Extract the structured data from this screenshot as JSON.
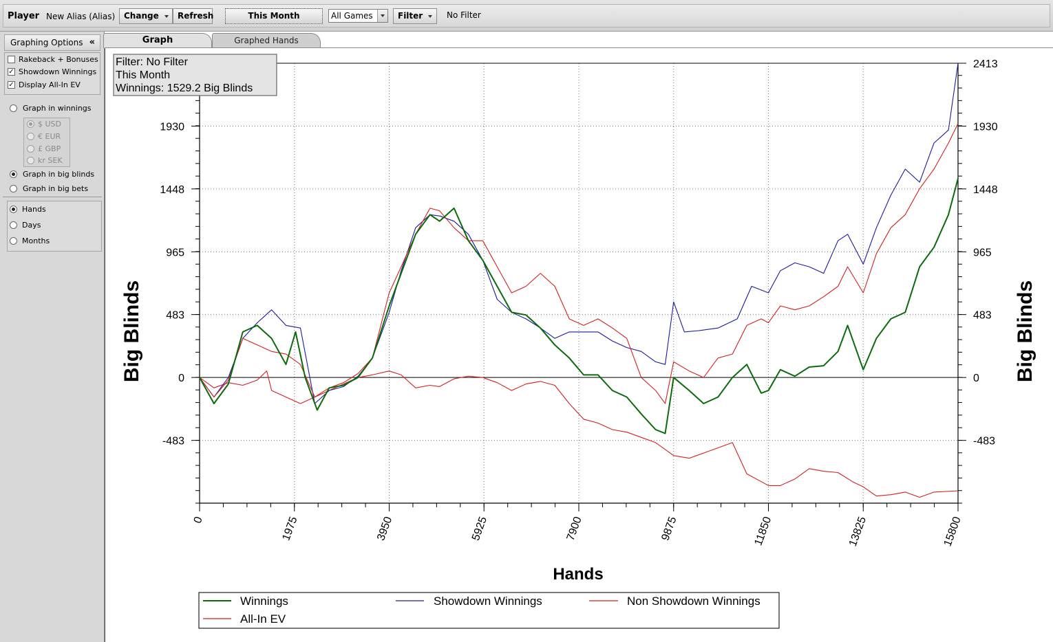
{
  "toolbar": {
    "player_label": "Player",
    "player_value": "New Alias (Alias)",
    "change_label": "Change",
    "refresh_label": "Refresh",
    "period_label": "This Month",
    "games_value": "All Games",
    "filter_label": "Filter",
    "filter_status": "No Filter"
  },
  "sidebar": {
    "title": "Graphing Options",
    "collapse_glyph": "«",
    "checkboxes": [
      {
        "label": "Rakeback + Bonuses",
        "checked": false
      },
      {
        "label": "Showdown Winnings",
        "checked": true
      },
      {
        "label": "Display All-In EV",
        "checked": true
      }
    ],
    "units": [
      {
        "label": "Graph in winnings",
        "selected": false
      },
      {
        "label": "Graph in big blinds",
        "selected": true
      },
      {
        "label": "Graph in big bets",
        "selected": false
      }
    ],
    "currencies": [
      {
        "label": "$ USD",
        "selected": true
      },
      {
        "label": "€ EUR",
        "selected": false
      },
      {
        "label": "£ GBP",
        "selected": false
      },
      {
        "label": "kr SEK",
        "selected": false
      }
    ],
    "xaxis_modes": [
      {
        "label": "Hands",
        "selected": true
      },
      {
        "label": "Days",
        "selected": false
      },
      {
        "label": "Months",
        "selected": false
      }
    ]
  },
  "tabs": [
    {
      "label": "Graph",
      "active": true
    },
    {
      "label": "Graphed Hands",
      "active": false
    }
  ],
  "chart_data": {
    "type": "line",
    "info_box": [
      "Filter: No Filter",
      "This Month",
      "Winnings: 1529.2 Big Blinds"
    ],
    "xlabel": "Hands",
    "ylabel": "Big Blinds",
    "xlim": [
      0,
      15800
    ],
    "ylim": [
      -965,
      2413
    ],
    "x_ticks": [
      "0",
      "1975",
      "3950",
      "5925",
      "7900",
      "9875",
      "11850",
      "13825",
      "15800"
    ],
    "y_ticks": [
      "2413",
      "1930",
      "1448",
      "965",
      "483",
      "0",
      "-483"
    ],
    "grid": true,
    "legend_placement": "bottom",
    "series": [
      {
        "name": "Winnings",
        "color": "#0a6b0a",
        "points": [
          [
            0,
            0
          ],
          [
            300,
            -200
          ],
          [
            600,
            -50
          ],
          [
            900,
            350
          ],
          [
            1200,
            400
          ],
          [
            1500,
            300
          ],
          [
            1800,
            100
          ],
          [
            2000,
            350
          ],
          [
            2200,
            0
          ],
          [
            2450,
            -250
          ],
          [
            2700,
            -80
          ],
          [
            3000,
            -60
          ],
          [
            3300,
            0
          ],
          [
            3600,
            150
          ],
          [
            3950,
            550
          ],
          [
            4200,
            800
          ],
          [
            4500,
            1100
          ],
          [
            4800,
            1250
          ],
          [
            5000,
            1200
          ],
          [
            5300,
            1300
          ],
          [
            5600,
            1050
          ],
          [
            5900,
            900
          ],
          [
            6200,
            700
          ],
          [
            6500,
            500
          ],
          [
            6800,
            480
          ],
          [
            7100,
            380
          ],
          [
            7400,
            250
          ],
          [
            7700,
            150
          ],
          [
            8000,
            20
          ],
          [
            8300,
            20
          ],
          [
            8600,
            -100
          ],
          [
            8900,
            -150
          ],
          [
            9200,
            -280
          ],
          [
            9500,
            -400
          ],
          [
            9700,
            -430
          ],
          [
            9875,
            0
          ],
          [
            10200,
            -100
          ],
          [
            10500,
            -200
          ],
          [
            10800,
            -150
          ],
          [
            11100,
            0
          ],
          [
            11400,
            100
          ],
          [
            11700,
            -120
          ],
          [
            11850,
            -100
          ],
          [
            12100,
            60
          ],
          [
            12400,
            10
          ],
          [
            12700,
            80
          ],
          [
            13000,
            90
          ],
          [
            13300,
            200
          ],
          [
            13500,
            400
          ],
          [
            13825,
            60
          ],
          [
            14100,
            300
          ],
          [
            14400,
            450
          ],
          [
            14700,
            500
          ],
          [
            15000,
            850
          ],
          [
            15300,
            1000
          ],
          [
            15600,
            1250
          ],
          [
            15800,
            1529
          ]
        ]
      },
      {
        "name": "Showdown Winnings",
        "color": "#1a1aa0",
        "points": [
          [
            0,
            0
          ],
          [
            300,
            -150
          ],
          [
            600,
            0
          ],
          [
            900,
            300
          ],
          [
            1200,
            420
          ],
          [
            1500,
            520
          ],
          [
            1800,
            400
          ],
          [
            2100,
            380
          ],
          [
            2400,
            -200
          ],
          [
            2700,
            -100
          ],
          [
            3000,
            -70
          ],
          [
            3300,
            10
          ],
          [
            3600,
            150
          ],
          [
            3950,
            500
          ],
          [
            4200,
            820
          ],
          [
            4500,
            1150
          ],
          [
            4800,
            1250
          ],
          [
            5000,
            1240
          ],
          [
            5300,
            1200
          ],
          [
            5600,
            1100
          ],
          [
            5900,
            900
          ],
          [
            6200,
            600
          ],
          [
            6500,
            500
          ],
          [
            6800,
            450
          ],
          [
            7100,
            380
          ],
          [
            7400,
            300
          ],
          [
            7700,
            350
          ],
          [
            8000,
            350
          ],
          [
            8300,
            350
          ],
          [
            8600,
            280
          ],
          [
            8900,
            230
          ],
          [
            9200,
            200
          ],
          [
            9500,
            120
          ],
          [
            9700,
            100
          ],
          [
            9875,
            580
          ],
          [
            10100,
            350
          ],
          [
            10400,
            360
          ],
          [
            10800,
            380
          ],
          [
            11200,
            450
          ],
          [
            11500,
            700
          ],
          [
            11850,
            650
          ],
          [
            12100,
            820
          ],
          [
            12400,
            880
          ],
          [
            12700,
            850
          ],
          [
            13000,
            800
          ],
          [
            13300,
            1050
          ],
          [
            13500,
            1100
          ],
          [
            13825,
            870
          ],
          [
            14100,
            1150
          ],
          [
            14400,
            1400
          ],
          [
            14700,
            1600
          ],
          [
            15000,
            1500
          ],
          [
            15300,
            1800
          ],
          [
            15600,
            1900
          ],
          [
            15800,
            2413
          ]
        ]
      },
      {
        "name": "Non Showdown Winnings",
        "color": "#d42020",
        "points": [
          [
            0,
            0
          ],
          [
            300,
            -80
          ],
          [
            600,
            -40
          ],
          [
            900,
            -60
          ],
          [
            1200,
            -20
          ],
          [
            1400,
            50
          ],
          [
            1500,
            -100
          ],
          [
            1800,
            -150
          ],
          [
            2100,
            -200
          ],
          [
            2400,
            -150
          ],
          [
            2700,
            -100
          ],
          [
            3000,
            -50
          ],
          [
            3300,
            0
          ],
          [
            3600,
            20
          ],
          [
            3950,
            50
          ],
          [
            4200,
            20
          ],
          [
            4500,
            -80
          ],
          [
            4800,
            -60
          ],
          [
            5000,
            -70
          ],
          [
            5300,
            -10
          ],
          [
            5600,
            10
          ],
          [
            5900,
            0
          ],
          [
            6200,
            -40
          ],
          [
            6500,
            -100
          ],
          [
            6800,
            -50
          ],
          [
            7100,
            -30
          ],
          [
            7400,
            -60
          ],
          [
            7700,
            -200
          ],
          [
            8000,
            -320
          ],
          [
            8300,
            -350
          ],
          [
            8600,
            -400
          ],
          [
            8900,
            -420
          ],
          [
            9200,
            -460
          ],
          [
            9500,
            -500
          ],
          [
            9875,
            -600
          ],
          [
            10200,
            -620
          ],
          [
            10500,
            -580
          ],
          [
            10800,
            -540
          ],
          [
            11100,
            -500
          ],
          [
            11400,
            -740
          ],
          [
            11700,
            -800
          ],
          [
            11850,
            -830
          ],
          [
            12100,
            -830
          ],
          [
            12400,
            -780
          ],
          [
            12700,
            -700
          ],
          [
            13000,
            -720
          ],
          [
            13300,
            -730
          ],
          [
            13600,
            -800
          ],
          [
            13825,
            -840
          ],
          [
            14100,
            -910
          ],
          [
            14400,
            -900
          ],
          [
            14700,
            -880
          ],
          [
            15000,
            -920
          ],
          [
            15300,
            -880
          ],
          [
            15800,
            -870
          ]
        ]
      },
      {
        "name": "All-In EV",
        "color": "#d42020",
        "points": [
          [
            0,
            0
          ],
          [
            300,
            -150
          ],
          [
            600,
            -20
          ],
          [
            900,
            300
          ],
          [
            1200,
            250
          ],
          [
            1500,
            200
          ],
          [
            1800,
            180
          ],
          [
            2100,
            100
          ],
          [
            2400,
            -150
          ],
          [
            2700,
            -80
          ],
          [
            3000,
            -40
          ],
          [
            3300,
            30
          ],
          [
            3600,
            150
          ],
          [
            3950,
            650
          ],
          [
            4200,
            850
          ],
          [
            4500,
            1100
          ],
          [
            4800,
            1300
          ],
          [
            5000,
            1280
          ],
          [
            5300,
            1150
          ],
          [
            5600,
            1050
          ],
          [
            5900,
            1050
          ],
          [
            6200,
            850
          ],
          [
            6500,
            650
          ],
          [
            6800,
            700
          ],
          [
            7100,
            800
          ],
          [
            7400,
            700
          ],
          [
            7700,
            450
          ],
          [
            8000,
            400
          ],
          [
            8300,
            450
          ],
          [
            8600,
            380
          ],
          [
            8900,
            300
          ],
          [
            9200,
            0
          ],
          [
            9500,
            -100
          ],
          [
            9700,
            -200
          ],
          [
            9875,
            120
          ],
          [
            10200,
            50
          ],
          [
            10500,
            0
          ],
          [
            10800,
            150
          ],
          [
            11100,
            180
          ],
          [
            11400,
            400
          ],
          [
            11700,
            450
          ],
          [
            11850,
            420
          ],
          [
            12100,
            550
          ],
          [
            12400,
            520
          ],
          [
            12700,
            550
          ],
          [
            13000,
            620
          ],
          [
            13300,
            700
          ],
          [
            13500,
            850
          ],
          [
            13825,
            650
          ],
          [
            14100,
            950
          ],
          [
            14400,
            1150
          ],
          [
            14700,
            1250
          ],
          [
            15000,
            1450
          ],
          [
            15300,
            1600
          ],
          [
            15600,
            1800
          ],
          [
            15800,
            1950
          ]
        ]
      }
    ]
  }
}
